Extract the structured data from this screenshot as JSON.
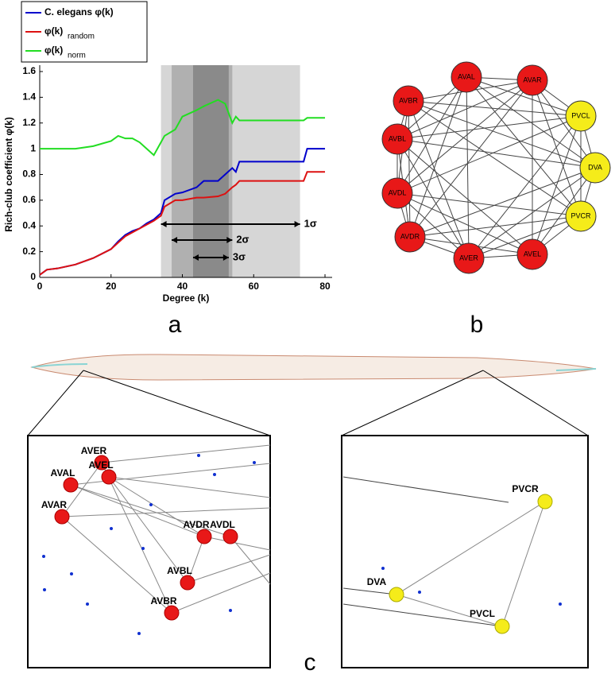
{
  "chart_data": {
    "type": "line",
    "x_label": "Degree (k)",
    "y_label": "Rich-club coefficient φ(k)",
    "x": [
      0,
      2,
      5,
      10,
      15,
      20,
      22,
      24,
      26,
      28,
      30,
      32,
      34,
      35,
      38,
      40,
      44,
      46,
      50,
      52,
      54,
      55,
      56,
      60,
      74,
      75,
      80
    ],
    "series": [
      {
        "name": "C. elegans φ(k)",
        "color": "#0000cc",
        "values": [
          0.02,
          0.06,
          0.07,
          0.1,
          0.15,
          0.22,
          0.28,
          0.33,
          0.36,
          0.38,
          0.42,
          0.45,
          0.5,
          0.6,
          0.65,
          0.66,
          0.7,
          0.75,
          0.75,
          0.8,
          0.85,
          0.82,
          0.9,
          0.9,
          0.9,
          1.0,
          1.0
        ]
      },
      {
        "name": "φ(k)",
        "subscript": "random",
        "color": "#dd1111",
        "values": [
          0.02,
          0.06,
          0.07,
          0.1,
          0.15,
          0.22,
          0.27,
          0.32,
          0.35,
          0.38,
          0.41,
          0.44,
          0.48,
          0.55,
          0.6,
          0.6,
          0.62,
          0.62,
          0.63,
          0.65,
          0.7,
          0.72,
          0.75,
          0.75,
          0.75,
          0.82,
          0.82
        ]
      },
      {
        "name": "φ(k)",
        "subscript": "norm",
        "color": "#22dd22",
        "values": [
          1.0,
          1.0,
          1.0,
          1.0,
          1.02,
          1.06,
          1.1,
          1.08,
          1.08,
          1.05,
          1.0,
          0.95,
          1.05,
          1.1,
          1.15,
          1.25,
          1.3,
          1.33,
          1.38,
          1.35,
          1.2,
          1.25,
          1.22,
          1.22,
          1.22,
          1.24,
          1.24
        ]
      }
    ],
    "bands": [
      {
        "label": "1σ",
        "range": [
          34,
          73
        ]
      },
      {
        "label": "2σ",
        "range": [
          37,
          54
        ]
      },
      {
        "label": "3σ",
        "range": [
          43,
          53
        ]
      }
    ],
    "xlim": [
      0,
      82
    ],
    "xticks": [
      0,
      20,
      40,
      60,
      80
    ],
    "ylim": [
      0,
      1.6
    ],
    "yticks": [
      0,
      0.2,
      0.4,
      0.6,
      0.8,
      1,
      1.2,
      1.4,
      1.6
    ]
  },
  "panel_labels": [
    "a",
    "b",
    "c"
  ],
  "network_b": {
    "nodes": [
      "AVAL",
      "AVAR",
      "PVCL",
      "DVA",
      "PVCR",
      "AVEL",
      "AVER",
      "AVDR",
      "AVDL",
      "AVBL",
      "AVBR"
    ]
  },
  "panel_c": {
    "left_nodes": [
      "AVER",
      "AVAL",
      "AVEL",
      "AVAR",
      "AVDR",
      "AVDL",
      "AVBL",
      "AVBR"
    ],
    "right_nodes": [
      "PVCR",
      "DVA",
      "PVCL"
    ]
  }
}
